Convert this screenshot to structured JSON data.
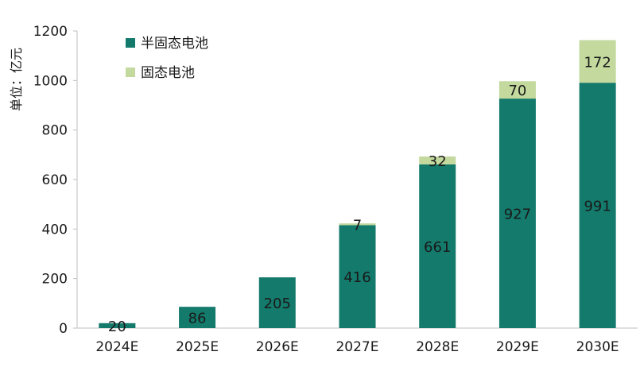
{
  "chart_data": {
    "type": "bar",
    "stacked": true,
    "categories": [
      "2024E",
      "2025E",
      "2026E",
      "2027E",
      "2028E",
      "2029E",
      "2030E"
    ],
    "series": [
      {
        "name": "半固态电池",
        "values": [
          20,
          86,
          205,
          416,
          661,
          927,
          991
        ],
        "color": "#137a6c"
      },
      {
        "name": "固态电池",
        "values": [
          null,
          null,
          null,
          7,
          32,
          70,
          172
        ],
        "color": "#c3d99e"
      }
    ],
    "ylabel": "单位：亿元",
    "xlabel": "",
    "title": "",
    "ylim": [
      0,
      1200
    ],
    "yticks": [
      0,
      200,
      400,
      600,
      800,
      1000,
      1200
    ],
    "grid": false,
    "legend_position": "top-left"
  }
}
